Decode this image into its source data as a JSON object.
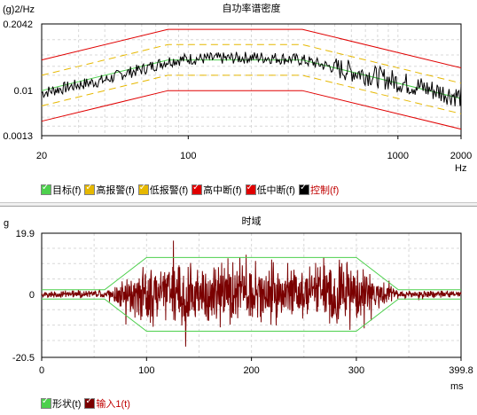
{
  "chart_data": [
    {
      "type": "line",
      "title": "自功率谱密度",
      "ylabel": "(g)2/Hz",
      "xlabel": "Hz",
      "x_scale": "log",
      "y_scale": "log",
      "xlim": [
        20,
        2000
      ],
      "ylim": [
        0.0013,
        0.2042
      ],
      "x_ticks": [
        {
          "v": 20,
          "label": "20"
        },
        {
          "v": 100,
          "label": "100"
        },
        {
          "v": 1000,
          "label": "1000"
        },
        {
          "v": 2000,
          "label": "2000"
        }
      ],
      "y_ticks": [
        {
          "v": 0.2042,
          "label": "0.2042"
        },
        {
          "v": 0.01,
          "label": "0.01"
        },
        {
          "v": 0.0013,
          "label": "0.0013"
        }
      ],
      "grid": true,
      "legend_position": "bottom-left",
      "series": [
        {
          "name": "目标(f)",
          "color": "#4dd04d",
          "x": [
            20,
            80,
            350,
            2000
          ],
          "y": [
            0.01,
            0.04,
            0.04,
            0.007
          ]
        },
        {
          "name": "高报警(f)",
          "color": "#e6b800",
          "dash": true,
          "x": [
            20,
            80,
            350,
            2000
          ],
          "y": [
            0.02,
            0.08,
            0.08,
            0.014
          ]
        },
        {
          "name": "低报警(f)",
          "color": "#e6b800",
          "dash": true,
          "x": [
            20,
            80,
            350,
            2000
          ],
          "y": [
            0.005,
            0.02,
            0.02,
            0.0035
          ]
        },
        {
          "name": "高中断(f)",
          "color": "#e00000",
          "x": [
            20,
            80,
            350,
            2000
          ],
          "y": [
            0.04,
            0.16,
            0.16,
            0.028
          ]
        },
        {
          "name": "低中断(f)",
          "color": "#e00000",
          "x": [
            20,
            80,
            350,
            2000
          ],
          "y": [
            0.0025,
            0.01,
            0.01,
            0.00175
          ]
        },
        {
          "name": "控制(f)",
          "color": "#000000",
          "label_color": "#c00000",
          "x": [
            20,
            30,
            40,
            50,
            60,
            70,
            80,
            100,
            150,
            200,
            250,
            300,
            350,
            500,
            700,
            1000,
            1500,
            2000
          ],
          "y": [
            0.009,
            0.013,
            0.016,
            0.022,
            0.026,
            0.032,
            0.038,
            0.042,
            0.043,
            0.045,
            0.044,
            0.042,
            0.04,
            0.028,
            0.021,
            0.015,
            0.01,
            0.0075
          ]
        }
      ]
    },
    {
      "type": "line",
      "title": "时域",
      "ylabel": "g",
      "xlabel": "ms",
      "xlim": [
        0,
        399.8
      ],
      "ylim": [
        -20.5,
        19.9
      ],
      "x_ticks": [
        {
          "v": 0,
          "label": "0"
        },
        {
          "v": 100,
          "label": "100"
        },
        {
          "v": 200,
          "label": "200"
        },
        {
          "v": 300,
          "label": "300"
        },
        {
          "v": 399.8,
          "label": "399.8"
        }
      ],
      "y_ticks": [
        {
          "v": 19.9,
          "label": "19.9"
        },
        {
          "v": 0,
          "label": "0"
        },
        {
          "v": -20.5,
          "label": "-20.5"
        }
      ],
      "grid": true,
      "legend_position": "bottom-left",
      "series": [
        {
          "name": "形状(t)",
          "color": "#4dd04d",
          "x": [
            0,
            60,
            100,
            300,
            340,
            399.8
          ],
          "y": [
            1.5,
            1.5,
            12,
            12,
            1.5,
            1.5
          ],
          "mirror": true
        },
        {
          "name": "输入1(t)",
          "color": "#7a0000",
          "label_color": "#c00000",
          "envelope": {
            "x": [
              0,
              60,
              100,
              300,
              340,
              399.8
            ],
            "amp": [
              1.2,
              1.6,
              12,
              12,
              1.6,
              1.2
            ]
          },
          "peak_max": 19,
          "peak_min": -17
        }
      ]
    }
  ]
}
